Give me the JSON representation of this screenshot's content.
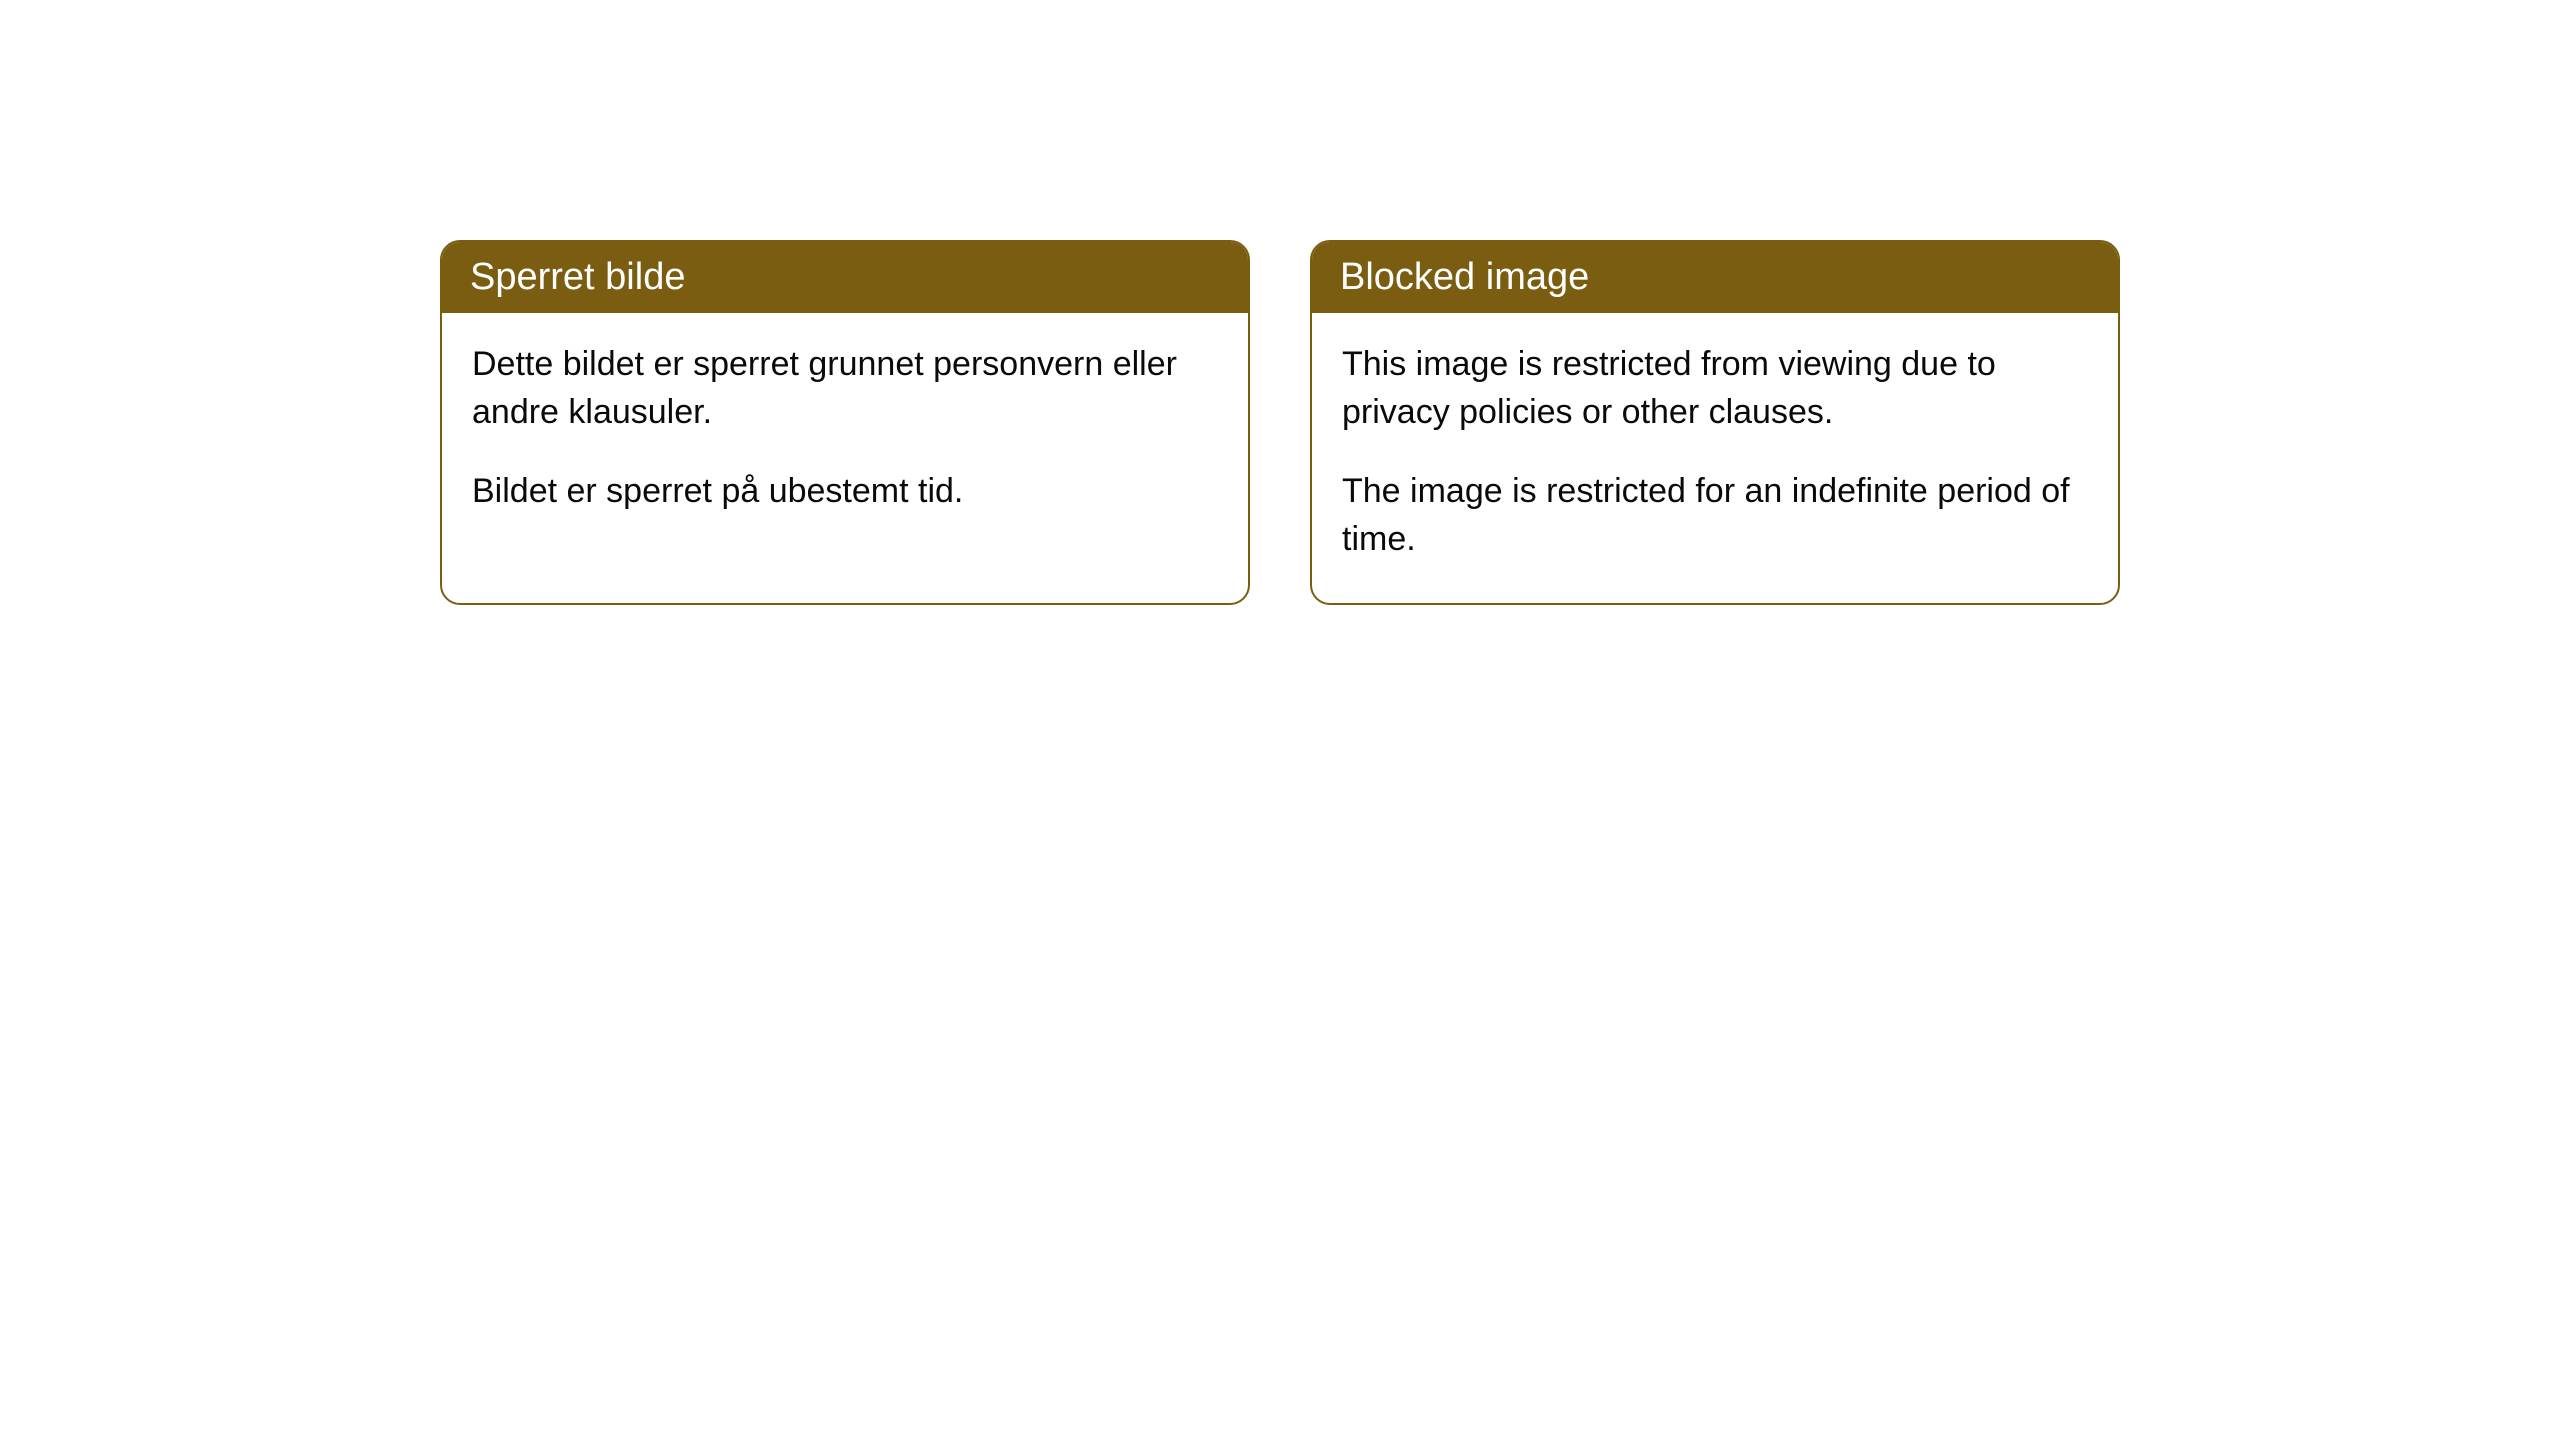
{
  "cards": [
    {
      "title": "Sperret bilde",
      "paragraph1": "Dette bildet er sperret grunnet personvern eller andre klausuler.",
      "paragraph2": "Bildet er sperret på ubestemt tid."
    },
    {
      "title": "Blocked image",
      "paragraph1": "This image is restricted from viewing due to privacy policies or other clauses.",
      "paragraph2": "The image is restricted for an indefinite period of time."
    }
  ],
  "styling": {
    "header_background": "#7a5d10",
    "header_text_color": "#ffffff",
    "border_color": "#7a5d10",
    "body_text_color": "#0a0a0a",
    "background_color": "#ffffff",
    "border_radius": 20,
    "title_fontsize": 38,
    "body_fontsize": 34
  }
}
